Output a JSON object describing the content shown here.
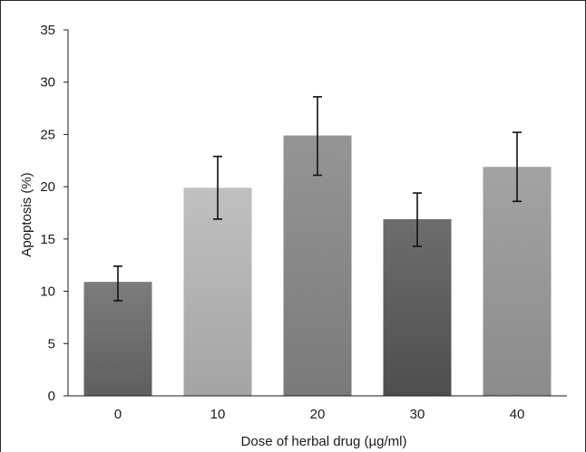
{
  "chart_data": {
    "type": "bar",
    "title": "",
    "xlabel": "Dose of herbal drug (µg/ml)",
    "ylabel": "Apoptosis (%)",
    "categories": [
      "0",
      "10",
      "20",
      "30",
      "40"
    ],
    "values": [
      10.9,
      19.9,
      24.9,
      16.9,
      21.9
    ],
    "error_low": [
      9.1,
      16.9,
      21.1,
      14.3,
      18.6
    ],
    "error_high": [
      12.4,
      22.9,
      28.6,
      19.4,
      25.2
    ],
    "ylim": [
      0,
      35
    ],
    "yticks": [
      "0",
      "5",
      "10",
      "15",
      "20",
      "25",
      "30",
      "35"
    ],
    "grid": false,
    "legend": "none",
    "colors": {
      "bars": [
        [
          "#5f5f5f",
          "#7c7c7c"
        ],
        [
          "#a4a4a4",
          "#c0c0c0"
        ],
        [
          "#7a7a7a",
          "#959595"
        ],
        [
          "#4e4e4e",
          "#6d6d6d"
        ],
        [
          "#8b8b8b",
          "#a3a3a3"
        ]
      ],
      "axis": "#1a1a1a",
      "errorbar": "#111111"
    }
  }
}
